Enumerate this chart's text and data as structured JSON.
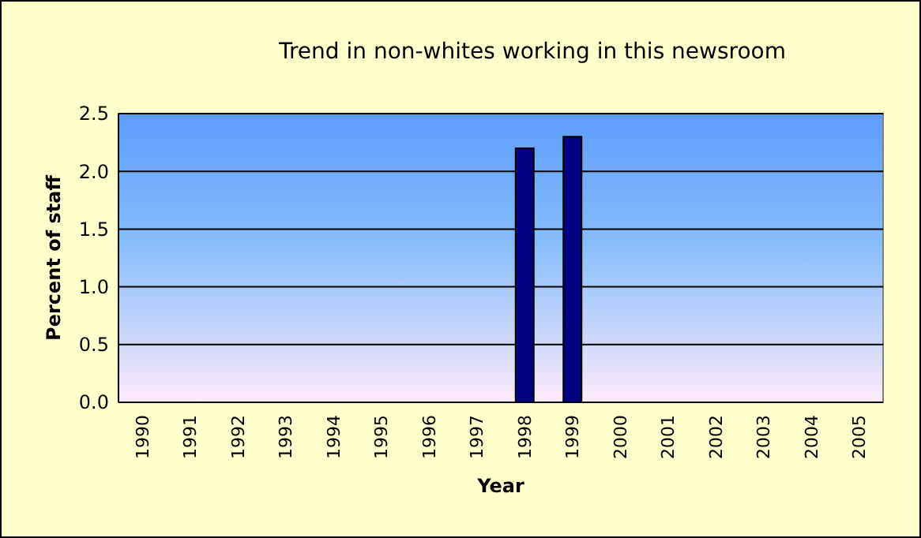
{
  "chart_data": {
    "type": "bar",
    "title": "Trend in non-whites working in this newsroom",
    "xlabel": "Year",
    "ylabel": "Percent of staff",
    "categories": [
      "1990",
      "1991",
      "1992",
      "1993",
      "1994",
      "1995",
      "1996",
      "1997",
      "1998",
      "1999",
      "2000",
      "2001",
      "2002",
      "2003",
      "2004",
      "2005"
    ],
    "values": [
      null,
      null,
      null,
      null,
      null,
      null,
      null,
      null,
      2.2,
      2.3,
      null,
      null,
      null,
      null,
      null,
      null
    ],
    "color": "#000080",
    "ylim": [
      0,
      2.5
    ],
    "yticks": [
      {
        "value": 0,
        "label": "0.0"
      },
      {
        "value": 0.5,
        "label": "0.5"
      },
      {
        "value": 1,
        "label": "1.0"
      },
      {
        "value": 1.5,
        "label": "1.5"
      },
      {
        "value": 2,
        "label": "2.0"
      },
      {
        "value": 2.5,
        "label": "2.5"
      }
    ],
    "grid": "y"
  }
}
